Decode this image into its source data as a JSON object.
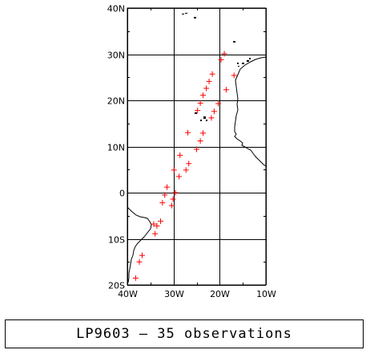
{
  "map": {
    "lat_range": [
      -20,
      40
    ],
    "lon_range": [
      -40,
      -10
    ],
    "lat_ticks": [
      {
        "value": 40,
        "label": "40N"
      },
      {
        "value": 30,
        "label": "30N"
      },
      {
        "value": 20,
        "label": "20N"
      },
      {
        "value": 10,
        "label": "10N"
      },
      {
        "value": 0,
        "label": "0"
      },
      {
        "value": -10,
        "label": "10S"
      },
      {
        "value": -20,
        "label": "20S"
      }
    ],
    "lon_ticks": [
      {
        "value": -40,
        "label": "40W"
      },
      {
        "value": -30,
        "label": "30W"
      },
      {
        "value": -20,
        "label": "20W"
      },
      {
        "value": -10,
        "label": "10W"
      }
    ],
    "grid": true,
    "marker_symbol": "+",
    "marker_color": "#ff0000",
    "coast_color": "#000000",
    "observations": [
      {
        "lon": -38.2,
        "lat": -18.5
      },
      {
        "lon": -37.4,
        "lat": -15.0
      },
      {
        "lon": -36.8,
        "lat": -13.6
      },
      {
        "lon": -34.0,
        "lat": -8.9
      },
      {
        "lon": -33.6,
        "lat": -7.2
      },
      {
        "lon": -34.3,
        "lat": -6.8
      },
      {
        "lon": -32.8,
        "lat": -6.2
      },
      {
        "lon": -32.4,
        "lat": -2.2
      },
      {
        "lon": -31.9,
        "lat": -0.5
      },
      {
        "lon": -31.4,
        "lat": 1.2
      },
      {
        "lon": -30.4,
        "lat": -2.8
      },
      {
        "lon": -30.1,
        "lat": -1.4
      },
      {
        "lon": -29.6,
        "lat": 0.0
      },
      {
        "lon": -29.9,
        "lat": 4.9
      },
      {
        "lon": -28.8,
        "lat": 3.5
      },
      {
        "lon": -28.6,
        "lat": 8.1
      },
      {
        "lon": -27.3,
        "lat": 4.9
      },
      {
        "lon": -26.7,
        "lat": 6.3
      },
      {
        "lon": -26.9,
        "lat": 13.0
      },
      {
        "lon": -25.0,
        "lat": 9.4
      },
      {
        "lon": -24.2,
        "lat": 11.2
      },
      {
        "lon": -23.6,
        "lat": 12.9
      },
      {
        "lon": -24.8,
        "lat": 17.8
      },
      {
        "lon": -24.2,
        "lat": 19.4
      },
      {
        "lon": -23.6,
        "lat": 21.1
      },
      {
        "lon": -22.9,
        "lat": 22.6
      },
      {
        "lon": -22.3,
        "lat": 24.1
      },
      {
        "lon": -21.6,
        "lat": 25.7
      },
      {
        "lon": -21.8,
        "lat": 16.2
      },
      {
        "lon": -21.2,
        "lat": 17.6
      },
      {
        "lon": -20.3,
        "lat": 19.3
      },
      {
        "lon": -19.7,
        "lat": 28.8
      },
      {
        "lon": -19.0,
        "lat": 30.1
      },
      {
        "lon": -18.6,
        "lat": 22.3
      },
      {
        "lon": -16.9,
        "lat": 25.4
      }
    ]
  },
  "caption": "LP9603 — 35 observations"
}
